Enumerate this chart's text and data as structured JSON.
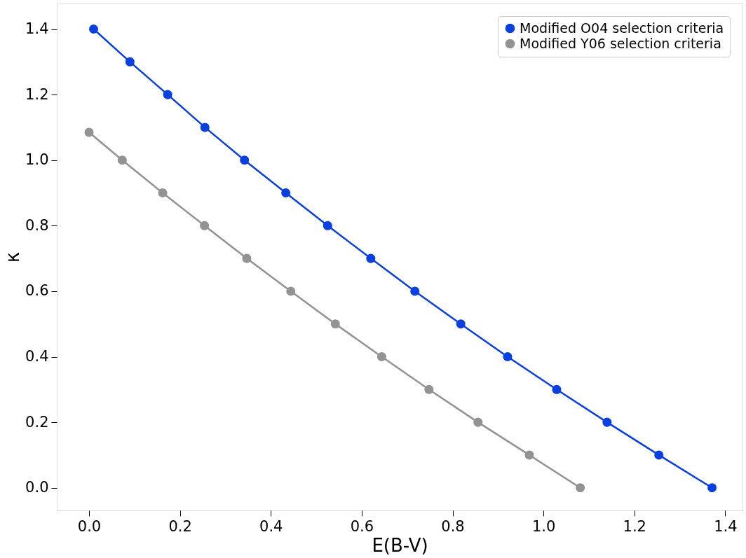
{
  "chart_data": {
    "type": "line",
    "xlabel": "E(B-V)",
    "ylabel": "κ",
    "xlim": [
      -0.071,
      1.438
    ],
    "ylim": [
      -0.069,
      1.478
    ],
    "xticks": [
      {
        "value": 0,
        "label": "0.0"
      },
      {
        "value": 0.2,
        "label": "0.2"
      },
      {
        "value": 0.4,
        "label": "0.4"
      },
      {
        "value": 0.6,
        "label": "0.6"
      },
      {
        "value": 0.8,
        "label": "0.8"
      },
      {
        "value": 1,
        "label": "1.0"
      },
      {
        "value": 1.2,
        "label": "1.2"
      },
      {
        "value": 1.4,
        "label": "1.4"
      }
    ],
    "yticks": [
      {
        "value": 0,
        "label": "0.0"
      },
      {
        "value": 0.2,
        "label": "0.2"
      },
      {
        "value": 0.4,
        "label": "0.4"
      },
      {
        "value": 0.6,
        "label": "0.6"
      },
      {
        "value": 0.8,
        "label": "0.8"
      },
      {
        "value": 1,
        "label": "1.0"
      },
      {
        "value": 1.2,
        "label": "1.2"
      },
      {
        "value": 1.4,
        "label": "1.4"
      }
    ],
    "grid": false,
    "legend": "top right",
    "marker": "circle",
    "line_style": "solid",
    "series": [
      {
        "name": "Modified O04 selection criteria",
        "color": "#0a3fe0",
        "x": [
          0.01,
          0.09,
          0.173,
          0.255,
          0.342,
          0.433,
          0.525,
          0.62,
          0.717,
          0.818,
          0.921,
          1.029,
          1.14,
          1.254,
          1.371
        ],
        "values": [
          1.4,
          1.3,
          1.2,
          1.1,
          1.0,
          0.9,
          0.8,
          0.7,
          0.6,
          0.5,
          0.4,
          0.3,
          0.2,
          0.1,
          0.0
        ]
      },
      {
        "name": "Modified Y06 selection criteria",
        "color": "#939393",
        "x": [
          0.0,
          0.073,
          0.162,
          0.254,
          0.347,
          0.444,
          0.542,
          0.644,
          0.748,
          0.856,
          0.969,
          1.081
        ],
        "values": [
          1.085,
          1.0,
          0.9,
          0.8,
          0.7,
          0.6,
          0.5,
          0.4,
          0.3,
          0.2,
          0.1,
          0.0
        ]
      }
    ]
  }
}
